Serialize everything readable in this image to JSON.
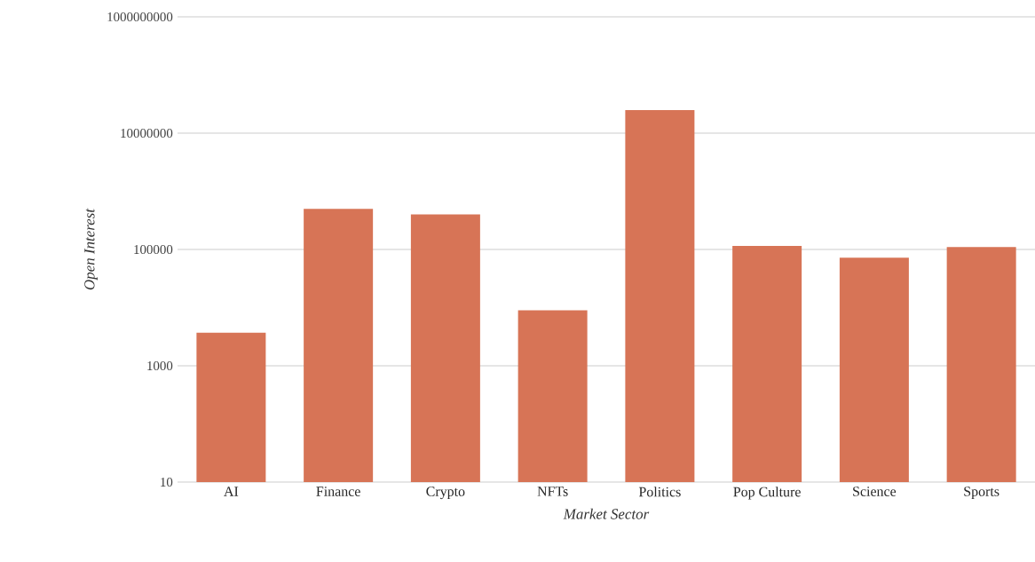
{
  "chart_data": {
    "type": "bar",
    "xlabel": "Market Sector",
    "ylabel": "Open Interest",
    "categories": [
      "AI",
      "Finance",
      "Crypto",
      "NFTs",
      "Politics",
      "Pop Culture",
      "Science",
      "Sports"
    ],
    "values": [
      3700,
      500000,
      400000,
      9000,
      25000000,
      115000,
      72000,
      110000
    ],
    "color": "#d77456",
    "log": "y",
    "ylim": [
      10,
      1000000000
    ],
    "yticks": [
      10,
      1000,
      100000,
      10000000,
      1000000000
    ],
    "grid": "y"
  }
}
